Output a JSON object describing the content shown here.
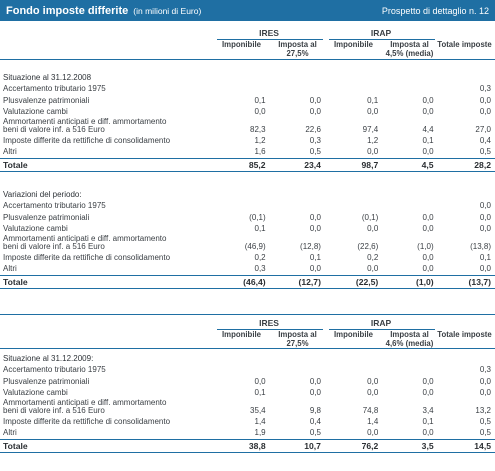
{
  "header": {
    "title": "Fondo imposte differite",
    "subtitle": "(in milioni di Euro)",
    "reference": "Prospetto di dettaglio n. 12"
  },
  "columns": {
    "ires": "IRES",
    "irap": "IRAP",
    "imponibile": "Imponibile",
    "imposta_ires": "Imposta al 27,5%",
    "imposta_irap_1": "Imposta al 4,5% (media)",
    "imposta_irap_2": "Imposta al 4,6% (media)",
    "totale": "Totale imposte"
  },
  "section1": {
    "heading": "Situazione al 31.12.2008",
    "rows": [
      {
        "label": "Accertamento tributario 1975",
        "v": [
          "",
          "",
          "",
          "",
          "0,3"
        ]
      },
      {
        "label": "Plusvalenze patrimoniali",
        "v": [
          "0,1",
          "0,0",
          "0,1",
          "0,0",
          "0,0"
        ]
      },
      {
        "label": "Valutazione cambi",
        "v": [
          "0,0",
          "0,0",
          "0,0",
          "0,0",
          "0,0"
        ]
      },
      {
        "label": "Ammortamenti anticipati e diff. ammortamento",
        "label2": "beni di valore inf. a 516 Euro",
        "v": [
          "82,3",
          "22,6",
          "97,4",
          "4,4",
          "27,0"
        ]
      },
      {
        "label": "Imposte differite da rettifiche di consolidamento",
        "v": [
          "1,2",
          "0,3",
          "1,2",
          "0,1",
          "0,4"
        ]
      },
      {
        "label": "Altri",
        "v": [
          "1,6",
          "0,5",
          "0,0",
          "0,0",
          "0,5"
        ]
      }
    ],
    "total": {
      "label": "Totale",
      "v": [
        "85,2",
        "23,4",
        "98,7",
        "4,5",
        "28,2"
      ]
    }
  },
  "section2": {
    "heading": "Variazioni del periodo:",
    "rows": [
      {
        "label": "Accertamento tributario 1975",
        "v": [
          "",
          "",
          "",
          "",
          "0,0"
        ]
      },
      {
        "label": "Plusvalenze patrimoniali",
        "v": [
          "(0,1)",
          "0,0",
          "(0,1)",
          "0,0",
          "0,0"
        ]
      },
      {
        "label": "Valutazione cambi",
        "v": [
          "0,1",
          "0,0",
          "0,0",
          "0,0",
          "0,0"
        ]
      },
      {
        "label": "Ammortamenti anticipati e diff. ammortamento",
        "label2": "beni di valore inf. a 516 Euro",
        "v": [
          "(46,9)",
          "(12,8)",
          "(22,6)",
          "(1,0)",
          "(13,8)"
        ]
      },
      {
        "label": "Imposte differite da rettifiche di consolidamento",
        "v": [
          "0,2",
          "0,1",
          "0,2",
          "0,0",
          "0,1"
        ]
      },
      {
        "label": "Altri",
        "v": [
          "0,3",
          "0,0",
          "0,0",
          "0,0",
          "0,0"
        ]
      }
    ],
    "total": {
      "label": "Totale",
      "v": [
        "(46,4)",
        "(12,7)",
        "(22,5)",
        "(1,0)",
        "(13,7)"
      ]
    }
  },
  "section3": {
    "heading": "Situazione al 31.12.2009:",
    "rows": [
      {
        "label": "Accertamento tributario 1975",
        "v": [
          "",
          "",
          "",
          "",
          "0,3"
        ]
      },
      {
        "label": "Plusvalenze patrimoniali",
        "v": [
          "0,0",
          "0,0",
          "0,0",
          "0,0",
          "0,0"
        ]
      },
      {
        "label": "Valutazione cambi",
        "v": [
          "0,1",
          "0,0",
          "0,0",
          "0,0",
          "0,0"
        ]
      },
      {
        "label": "Ammortamenti anticipati e diff. ammortamento",
        "label2": "beni di valore inf. a 516 Euro",
        "v": [
          "35,4",
          "9,8",
          "74,8",
          "3,4",
          "13,2"
        ]
      },
      {
        "label": "Imposte differite da rettifiche di consolidamento",
        "v": [
          "1,4",
          "0,4",
          "1,4",
          "0,1",
          "0,5"
        ]
      },
      {
        "label": "Altri",
        "v": [
          "1,9",
          "0,5",
          "0,0",
          "0,0",
          "0,5"
        ]
      }
    ],
    "total": {
      "label": "Totale",
      "v": [
        "38,8",
        "10,7",
        "76,2",
        "3,5",
        "14,5"
      ]
    }
  }
}
